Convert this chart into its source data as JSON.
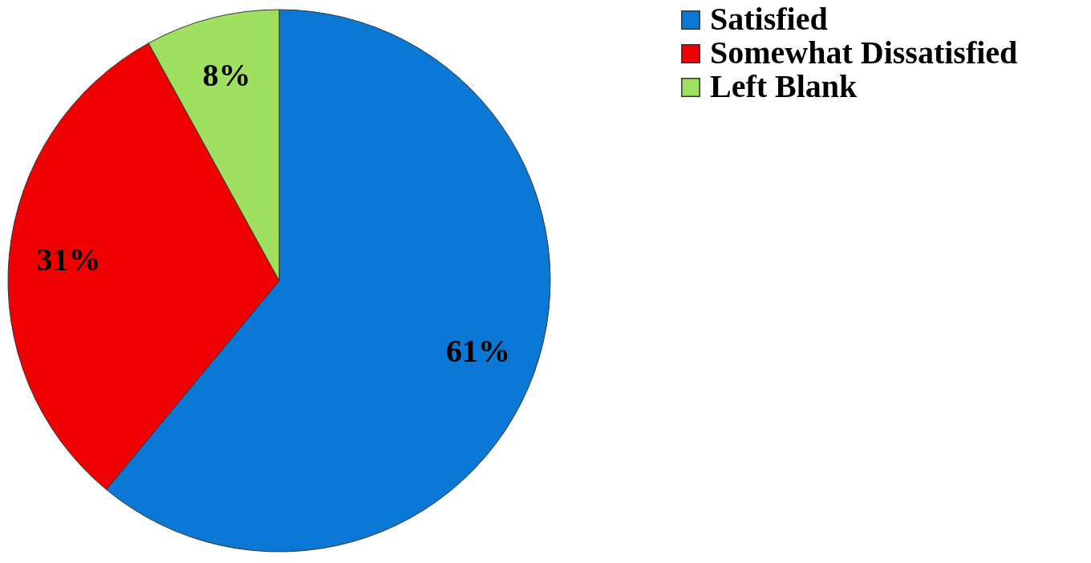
{
  "chart_data": {
    "type": "pie",
    "categories": [
      "Satisfied",
      "Somewhat Dissatisfied",
      "Left Blank"
    ],
    "values": [
      61,
      31,
      8
    ],
    "colors": [
      "#0a78d4",
      "#f00000",
      "#a0e060"
    ],
    "value_labels": [
      "61%",
      "31%",
      "8%"
    ],
    "legend": "right"
  }
}
